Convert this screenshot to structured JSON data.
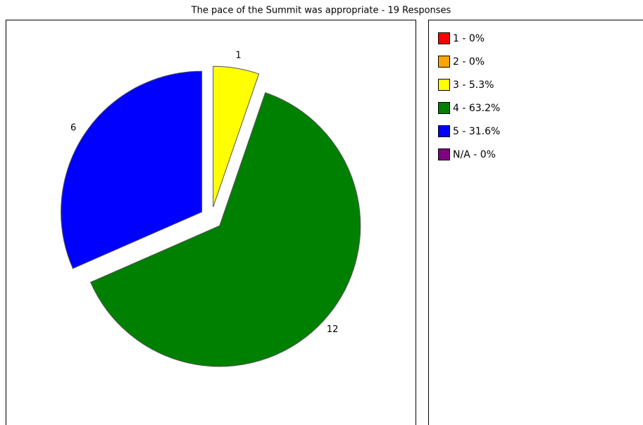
{
  "chart_data": {
    "type": "pie",
    "title": "The pace of the Summit was appropriate - 19 Responses",
    "categories": [
      "1 - 0%",
      "2 - 0%",
      "3 - 5.3%",
      "4 - 63.2%",
      "5 - 31.6%",
      "N/A - 0%"
    ],
    "values": [
      0,
      0,
      1,
      12,
      6,
      0
    ],
    "colors": [
      "#ff0000",
      "#ffa500",
      "#ffff00",
      "#008000",
      "#0000ff",
      "#800080"
    ]
  }
}
